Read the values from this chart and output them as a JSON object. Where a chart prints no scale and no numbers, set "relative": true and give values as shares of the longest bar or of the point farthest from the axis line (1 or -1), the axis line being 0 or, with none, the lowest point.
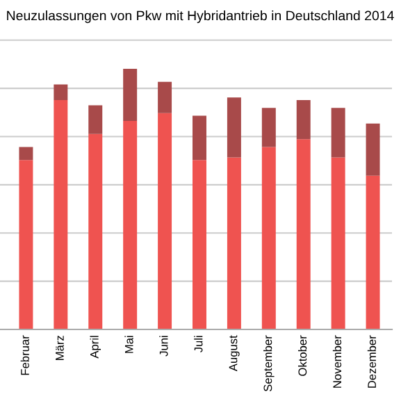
{
  "chart_data": {
    "type": "bar",
    "title": "Neuzulassungen von Pkw mit Hybridantrieb in Deutschland 2014",
    "categories": [
      "Februar",
      "März",
      "April",
      "Mai",
      "Juni",
      "Juli",
      "August",
      "September",
      "Oktober",
      "November",
      "Dezember"
    ],
    "stacked": true,
    "relative": true,
    "grid": "y",
    "series": [
      {
        "color": "#ef5350",
        "values": [
          0.65,
          0.88,
          0.75,
          0.8,
          0.83,
          0.65,
          0.66,
          0.7,
          0.73,
          0.66,
          0.59
        ]
      },
      {
        "color": "#a84a4a",
        "values": [
          0.05,
          0.06,
          0.11,
          0.2,
          0.12,
          0.17,
          0.23,
          0.15,
          0.15,
          0.19,
          0.2
        ]
      }
    ]
  }
}
